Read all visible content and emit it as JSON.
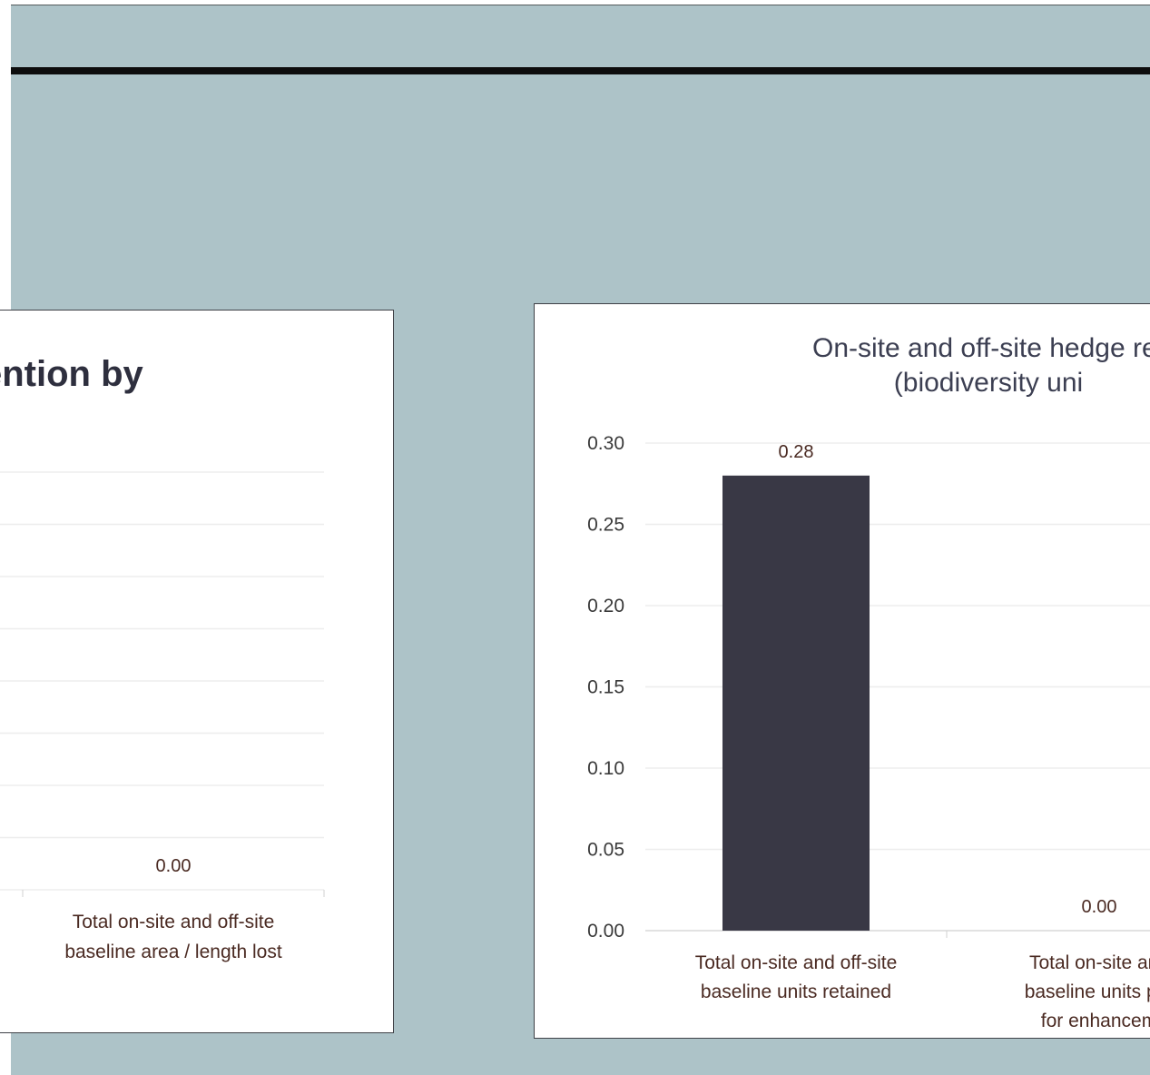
{
  "colors": {
    "background": "#adc3c8",
    "bar": "#393845",
    "gridline": "#ededed",
    "axis_text": "#3a3a3a",
    "label_text": "#4a2a22"
  },
  "chart_data": [
    {
      "type": "bar",
      "title": "ention by",
      "categories": [
        "Total on-site and off-site baseline area / length lost"
      ],
      "category_lines": [
        [
          "Total on-site and off-site",
          "baseline area / length lost"
        ]
      ],
      "values": [
        0.0
      ],
      "data_labels": [
        "0.00"
      ],
      "ylim": [
        0,
        8
      ],
      "yticks": [
        0,
        1,
        2,
        3,
        4,
        5,
        6,
        7,
        8
      ],
      "grid": true,
      "legend": "none"
    },
    {
      "type": "bar",
      "title_lines": [
        "On-site and off-site hedge ret",
        "(biodiversity uni"
      ],
      "categories": [
        "Total on-site and off-site baseline units retained",
        "Total on-site and baseline units pro for enhancem"
      ],
      "category_lines": [
        [
          "Total on-site and off-site",
          "baseline units retained"
        ],
        [
          "Total on-site and",
          "baseline units pro",
          "for enhancem"
        ]
      ],
      "values": [
        0.28,
        0.0
      ],
      "data_labels": [
        "0.28",
        "0.00"
      ],
      "ylim": [
        0,
        0.3
      ],
      "yticks": [
        0.0,
        0.05,
        0.1,
        0.15,
        0.2,
        0.25,
        0.3
      ],
      "ytick_labels": [
        "0.00",
        "0.05",
        "0.10",
        "0.15",
        "0.20",
        "0.25",
        "0.30"
      ],
      "grid": true,
      "legend": "none"
    }
  ]
}
